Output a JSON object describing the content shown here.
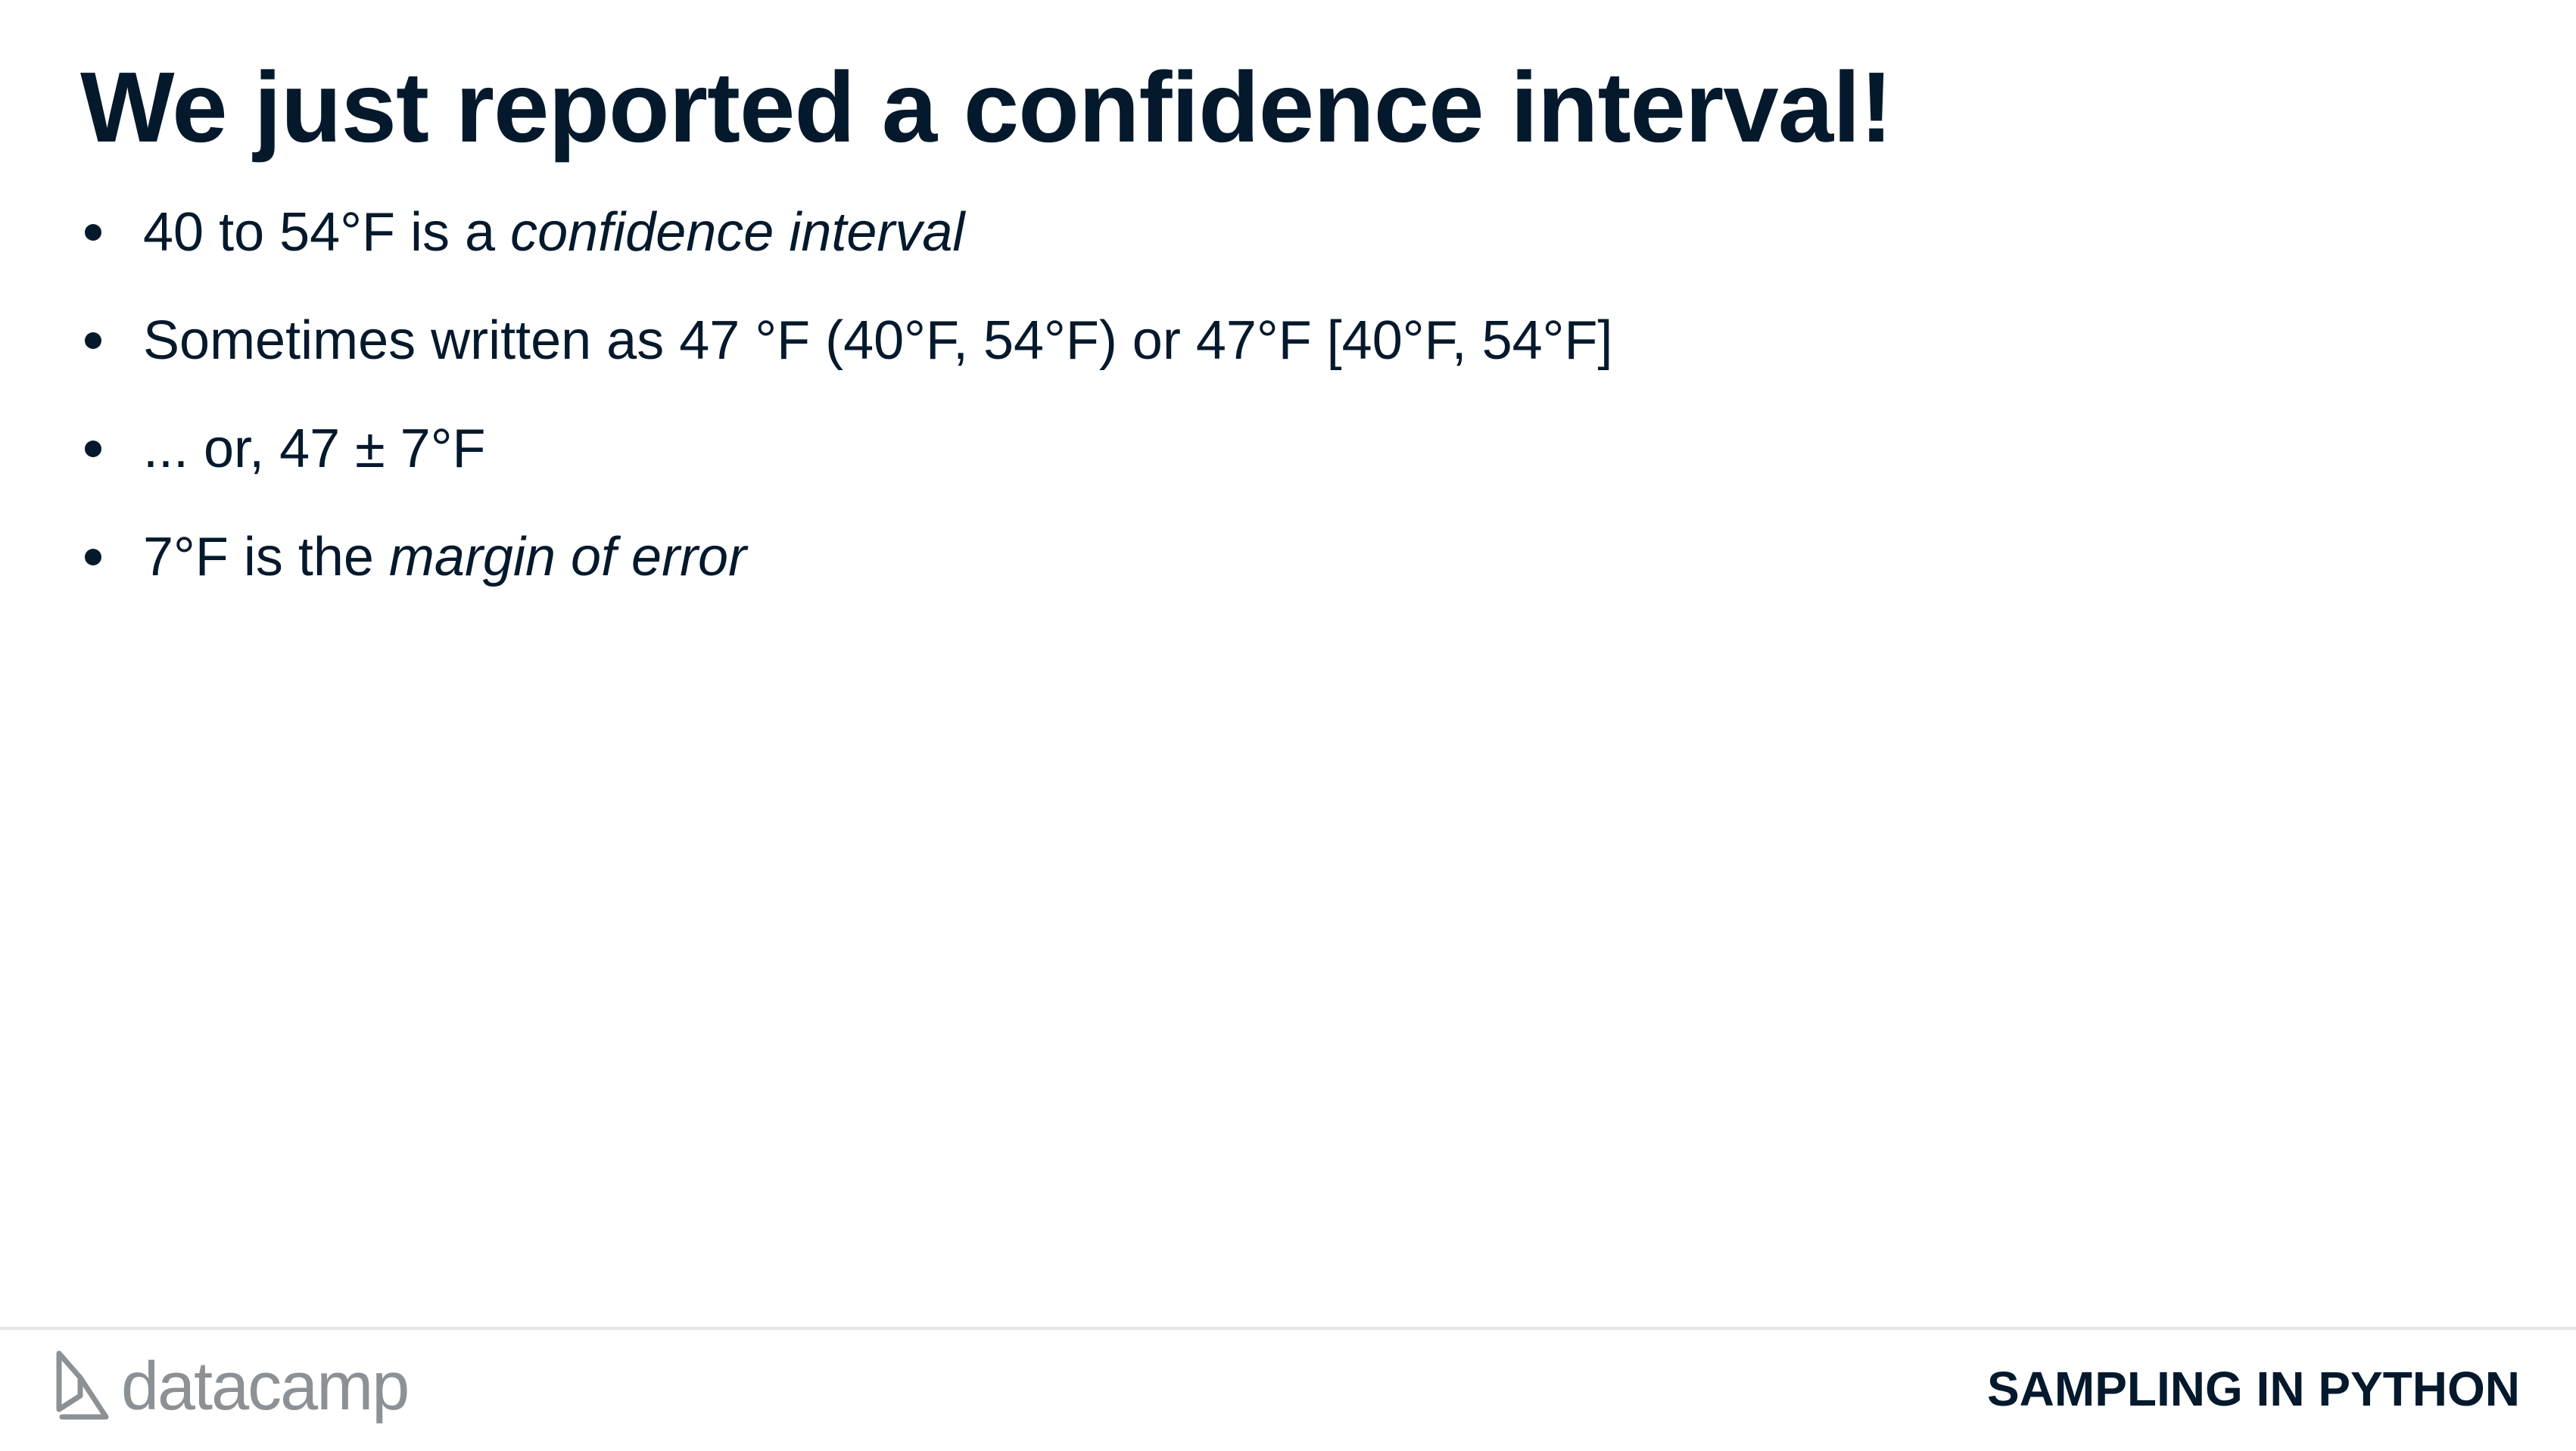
{
  "slide": {
    "title": "We just reported a confidence interval!",
    "bullets": [
      {
        "plain": "40 to 54°F is a ",
        "emphasis": "confidence interval"
      },
      {
        "plain": "Sometimes written as 47 °F (40°F, 54°F) or 47°F [40°F, 54°F]",
        "emphasis": ""
      },
      {
        "plain": "... or, 47 ± 7°F",
        "emphasis": ""
      },
      {
        "plain": "7°F is the ",
        "emphasis": "margin of error"
      }
    ]
  },
  "footer": {
    "logo_text": "datacamp",
    "logo_icon": "datacamp-logo-icon",
    "course_title": "SAMPLING IN PYTHON"
  },
  "colors": {
    "text": "#05192d",
    "logo_gray": "#8c9196",
    "rule": "#e6e6e6",
    "background": "#ffffff"
  }
}
